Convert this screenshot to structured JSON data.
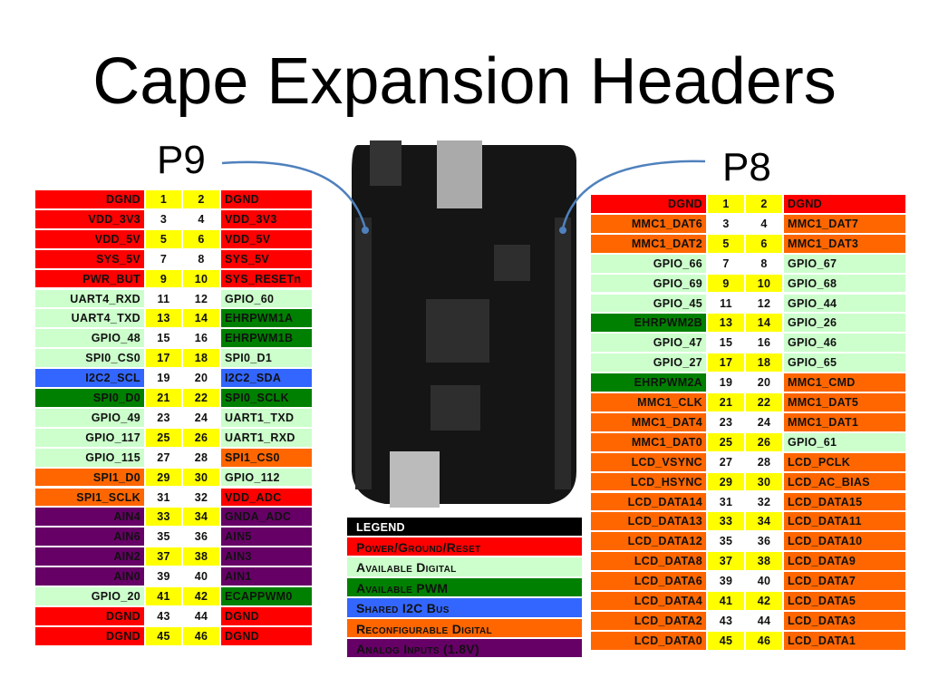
{
  "title": "Cape Expansion Headers",
  "p9": {
    "label": "P9",
    "rows": [
      {
        "cells": [
          "DGND",
          1,
          2,
          "DGND"
        ],
        "colors": [
          "#ff0000",
          "#ff0000"
        ]
      },
      {
        "cells": [
          "VDD_3V3",
          3,
          4,
          "VDD_3V3"
        ],
        "colors": [
          "#ff0000",
          "#ff0000"
        ]
      },
      {
        "cells": [
          "VDD_5V",
          5,
          6,
          "VDD_5V"
        ],
        "colors": [
          "#ff0000",
          "#ff0000"
        ]
      },
      {
        "cells": [
          "SYS_5V",
          7,
          8,
          "SYS_5V"
        ],
        "colors": [
          "#ff0000",
          "#ff0000"
        ]
      },
      {
        "cells": [
          "PWR_BUT",
          9,
          10,
          "SYS_RESETn"
        ],
        "colors": [
          "#ff0000",
          "#ff0000"
        ]
      },
      {
        "cells": [
          "UART4_RXD",
          11,
          12,
          "GPIO_60"
        ],
        "colors": [
          "#ccffcc",
          "#ccffcc"
        ]
      },
      {
        "cells": [
          "UART4_TXD",
          13,
          14,
          "EHRPWM1A"
        ],
        "colors": [
          "#ccffcc",
          "#008000"
        ]
      },
      {
        "cells": [
          "GPIO_48",
          15,
          16,
          "EHRPWM1B"
        ],
        "colors": [
          "#ccffcc",
          "#008000"
        ]
      },
      {
        "cells": [
          "SPI0_CS0",
          17,
          18,
          "SPI0_D1"
        ],
        "colors": [
          "#ccffcc",
          "#ccffcc"
        ]
      },
      {
        "cells": [
          "I2C2_SCL",
          19,
          20,
          "I2C2_SDA"
        ],
        "colors": [
          "#3366ff",
          "#3366ff"
        ]
      },
      {
        "cells": [
          "SPI0_D0",
          21,
          22,
          "SPI0_SCLK"
        ],
        "colors": [
          "#008000",
          "#008000"
        ]
      },
      {
        "cells": [
          "GPIO_49",
          23,
          24,
          "UART1_TXD"
        ],
        "colors": [
          "#ccffcc",
          "#ccffcc"
        ]
      },
      {
        "cells": [
          "GPIO_117",
          25,
          26,
          "UART1_RXD"
        ],
        "colors": [
          "#ccffcc",
          "#ccffcc"
        ]
      },
      {
        "cells": [
          "GPIO_115",
          27,
          28,
          "SPI1_CS0"
        ],
        "colors": [
          "#ccffcc",
          "#ff6600"
        ]
      },
      {
        "cells": [
          "SPI1_D0",
          29,
          30,
          "GPIO_112"
        ],
        "colors": [
          "#ff6600",
          "#ccffcc"
        ]
      },
      {
        "cells": [
          "SPI1_SCLK",
          31,
          32,
          "VDD_ADC"
        ],
        "colors": [
          "#ff6600",
          "#ff0000"
        ]
      },
      {
        "cells": [
          "AIN4",
          33,
          34,
          "GNDA_ADC"
        ],
        "colors": [
          "#660066",
          "#660066"
        ]
      },
      {
        "cells": [
          "AIN6",
          35,
          36,
          "AIN5"
        ],
        "colors": [
          "#660066",
          "#660066"
        ]
      },
      {
        "cells": [
          "AIN2",
          37,
          38,
          "AIN3"
        ],
        "colors": [
          "#660066",
          "#660066"
        ]
      },
      {
        "cells": [
          "AIN0",
          39,
          40,
          "AIN1"
        ],
        "colors": [
          "#660066",
          "#660066"
        ]
      },
      {
        "cells": [
          "GPIO_20",
          41,
          42,
          "ECAPPWM0"
        ],
        "colors": [
          "#ccffcc",
          "#008000"
        ]
      },
      {
        "cells": [
          "DGND",
          43,
          44,
          "DGND"
        ],
        "colors": [
          "#ff0000",
          "#ff0000"
        ]
      },
      {
        "cells": [
          "DGND",
          45,
          46,
          "DGND"
        ],
        "colors": [
          "#ff0000",
          "#ff0000"
        ]
      }
    ]
  },
  "p8": {
    "label": "P8",
    "rows": [
      {
        "cells": [
          "DGND",
          1,
          2,
          "DGND"
        ],
        "colors": [
          "#ff0000",
          "#ff0000"
        ]
      },
      {
        "cells": [
          "MMC1_DAT6",
          3,
          4,
          "MMC1_DAT7"
        ],
        "colors": [
          "#ff6600",
          "#ff6600"
        ]
      },
      {
        "cells": [
          "MMC1_DAT2",
          5,
          6,
          "MMC1_DAT3"
        ],
        "colors": [
          "#ff6600",
          "#ff6600"
        ]
      },
      {
        "cells": [
          "GPIO_66",
          7,
          8,
          "GPIO_67"
        ],
        "colors": [
          "#ccffcc",
          "#ccffcc"
        ]
      },
      {
        "cells": [
          "GPIO_69",
          9,
          10,
          "GPIO_68"
        ],
        "colors": [
          "#ccffcc",
          "#ccffcc"
        ]
      },
      {
        "cells": [
          "GPIO_45",
          11,
          12,
          "GPIO_44"
        ],
        "colors": [
          "#ccffcc",
          "#ccffcc"
        ]
      },
      {
        "cells": [
          "EHRPWM2B",
          13,
          14,
          "GPIO_26"
        ],
        "colors": [
          "#008000",
          "#ccffcc"
        ]
      },
      {
        "cells": [
          "GPIO_47",
          15,
          16,
          "GPIO_46"
        ],
        "colors": [
          "#ccffcc",
          "#ccffcc"
        ]
      },
      {
        "cells": [
          "GPIO_27",
          17,
          18,
          "GPIO_65"
        ],
        "colors": [
          "#ccffcc",
          "#ccffcc"
        ]
      },
      {
        "cells": [
          "EHRPWM2A",
          19,
          20,
          "MMC1_CMD"
        ],
        "colors": [
          "#008000",
          "#ff6600"
        ]
      },
      {
        "cells": [
          "MMC1_CLK",
          21,
          22,
          "MMC1_DAT5"
        ],
        "colors": [
          "#ff6600",
          "#ff6600"
        ]
      },
      {
        "cells": [
          "MMC1_DAT4",
          23,
          24,
          "MMC1_DAT1"
        ],
        "colors": [
          "#ff6600",
          "#ff6600"
        ]
      },
      {
        "cells": [
          "MMC1_DAT0",
          25,
          26,
          "GPIO_61"
        ],
        "colors": [
          "#ff6600",
          "#ccffcc"
        ]
      },
      {
        "cells": [
          "LCD_VSYNC",
          27,
          28,
          "LCD_PCLK"
        ],
        "colors": [
          "#ff6600",
          "#ff6600"
        ]
      },
      {
        "cells": [
          "LCD_HSYNC",
          29,
          30,
          "LCD_AC_BIAS"
        ],
        "colors": [
          "#ff6600",
          "#ff6600"
        ]
      },
      {
        "cells": [
          "LCD_DATA14",
          31,
          32,
          "LCD_DATA15"
        ],
        "colors": [
          "#ff6600",
          "#ff6600"
        ]
      },
      {
        "cells": [
          "LCD_DATA13",
          33,
          34,
          "LCD_DATA11"
        ],
        "colors": [
          "#ff6600",
          "#ff6600"
        ]
      },
      {
        "cells": [
          "LCD_DATA12",
          35,
          36,
          "LCD_DATA10"
        ],
        "colors": [
          "#ff6600",
          "#ff6600"
        ]
      },
      {
        "cells": [
          "LCD_DATA8",
          37,
          38,
          "LCD_DATA9"
        ],
        "colors": [
          "#ff6600",
          "#ff6600"
        ]
      },
      {
        "cells": [
          "LCD_DATA6",
          39,
          40,
          "LCD_DATA7"
        ],
        "colors": [
          "#ff6600",
          "#ff6600"
        ]
      },
      {
        "cells": [
          "LCD_DATA4",
          41,
          42,
          "LCD_DATA5"
        ],
        "colors": [
          "#ff6600",
          "#ff6600"
        ]
      },
      {
        "cells": [
          "LCD_DATA2",
          43,
          44,
          "LCD_DATA3"
        ],
        "colors": [
          "#ff6600",
          "#ff6600"
        ]
      },
      {
        "cells": [
          "LCD_DATA0",
          45,
          46,
          "LCD_DATA1"
        ],
        "colors": [
          "#ff6600",
          "#ff6600"
        ]
      }
    ]
  },
  "legend": {
    "title": "LEGEND",
    "items": [
      {
        "label": "Power/Ground/Reset",
        "color": "#ff0000"
      },
      {
        "label": "Available Digital",
        "color": "#ccffcc"
      },
      {
        "label": "Available PWM",
        "color": "#008000"
      },
      {
        "label": "Shared I2C Bus",
        "color": "#3366ff"
      },
      {
        "label": "Reconfigurable Digital",
        "color": "#ff6600"
      },
      {
        "label": "Analog Inputs (1.8V)",
        "color": "#660066"
      }
    ]
  }
}
